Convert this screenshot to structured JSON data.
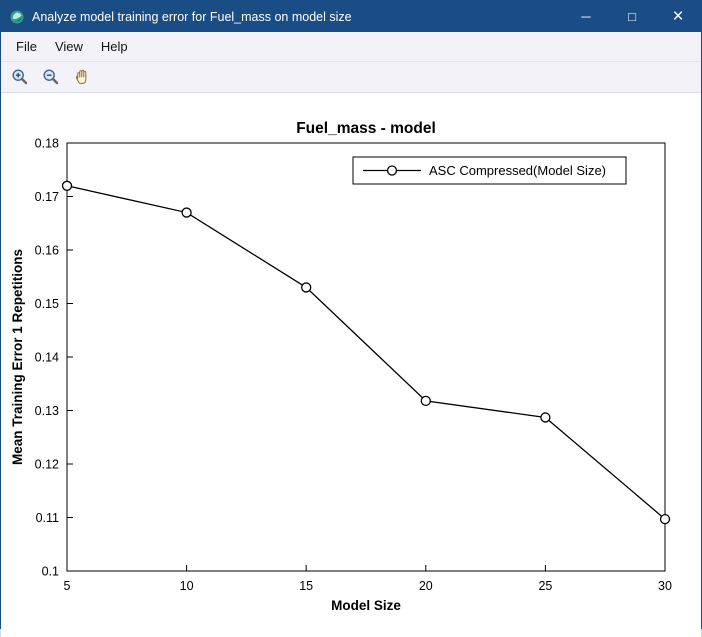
{
  "window": {
    "title": "Analyze model training error for Fuel_mass on model size",
    "controls": {
      "minimize": "─",
      "maximize": "□",
      "close": "×"
    }
  },
  "menubar": {
    "items": [
      "File",
      "View",
      "Help"
    ]
  },
  "toolbar": {
    "tools": [
      "zoom-in",
      "zoom-out",
      "pan"
    ]
  },
  "colors": {
    "titlebar": "#1a4c85",
    "titlebar_text": "#ffffff",
    "chrome_bg": "#f2f2f8",
    "figure_bg": "#ffffff",
    "axis": "#000000",
    "line": "#000000"
  },
  "chart_data": {
    "type": "line",
    "title": "Fuel_mass - model",
    "xlabel": "Model Size",
    "ylabel": "Mean Training Error 1 Repetitions",
    "xlim": [
      5,
      30
    ],
    "ylim": [
      0.1,
      0.18
    ],
    "xticks": [
      5,
      10,
      15,
      20,
      25,
      30
    ],
    "xtick_labels": [
      "5",
      "10",
      "15",
      "20",
      "25",
      "30"
    ],
    "yticks": [
      0.1,
      0.11,
      0.12,
      0.13,
      0.14,
      0.15,
      0.16,
      0.17,
      0.18
    ],
    "ytick_labels": [
      "0.1",
      "0.11",
      "0.12",
      "0.13",
      "0.14",
      "0.15",
      "0.16",
      "0.17",
      "0.18"
    ],
    "x": [
      5,
      10,
      15,
      20,
      25,
      30
    ],
    "series": [
      {
        "name": "ASC Compressed(Model Size)",
        "values": [
          0.172,
          0.167,
          0.153,
          0.1318,
          0.1287,
          0.1097
        ]
      }
    ],
    "grid": false,
    "legend_position": "top-right-inside",
    "marker": "circle-open",
    "line_color": "#000000"
  }
}
